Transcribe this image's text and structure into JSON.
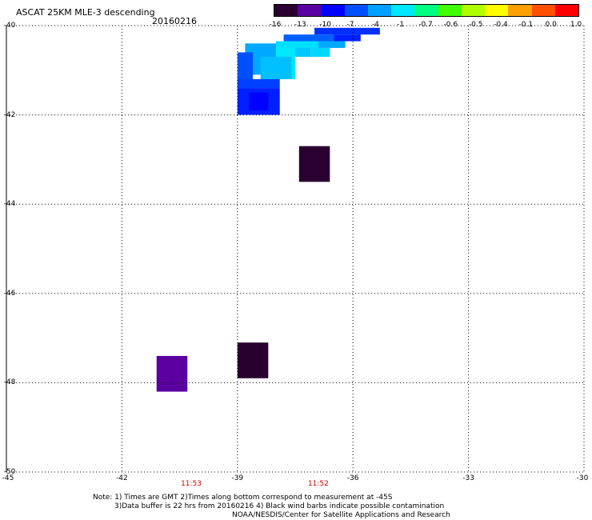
{
  "header": {
    "title": "ASCAT 25KM MLE-3 descending",
    "date": "20160216"
  },
  "colorbar": {
    "labels": [
      "-16",
      "-13",
      "-10",
      "-7",
      "-4",
      "-1",
      "-0.7",
      "-0.6",
      "-0.5",
      "-0.4",
      "-0.1",
      "0.0",
      "1.0"
    ],
    "colors": [
      "#2a0030",
      "#5a00a0",
      "#0000ff",
      "#0050ff",
      "#00a0ff",
      "#00e8ff",
      "#00ff80",
      "#40ff00",
      "#b0ff00",
      "#ffff00",
      "#ffa000",
      "#ff5000",
      "#ff0000"
    ]
  },
  "map": {
    "lat_labels": [
      "-40",
      "-42",
      "-44",
      "-46",
      "-48",
      "-50"
    ],
    "lon_labels": [
      "-45",
      "-42",
      "-39",
      "-36",
      "-33",
      "-30"
    ],
    "time_labels": [
      {
        "text": "11:53",
        "lon": -40.2
      },
      {
        "text": "11:52",
        "lon": -36.9
      }
    ],
    "cells": [
      {
        "lon0": -37.0,
        "lon1": -35.3,
        "lat0": -40.05,
        "lat1": -40.2,
        "color": "#0030ff"
      },
      {
        "lon0": -37.8,
        "lon1": -36.5,
        "lat0": -40.2,
        "lat1": -40.35,
        "color": "#0060ff"
      },
      {
        "lon0": -36.5,
        "lon1": -35.8,
        "lat0": -40.2,
        "lat1": -40.35,
        "color": "#0020ff"
      },
      {
        "lon0": -37.5,
        "lon1": -36.2,
        "lat0": -40.35,
        "lat1": -40.5,
        "color": "#00a8ff"
      },
      {
        "lon0": -38.0,
        "lon1": -36.9,
        "lat0": -40.35,
        "lat1": -40.5,
        "color": "#00e0ff"
      },
      {
        "lon0": -37.1,
        "lon1": -36.6,
        "lat0": -40.5,
        "lat1": -40.7,
        "color": "#00d8ff"
      },
      {
        "lon0": -38.0,
        "lon1": -37.1,
        "lat0": -40.5,
        "lat1": -40.7,
        "color": "#00c8ff"
      },
      {
        "lon0": -38.8,
        "lon1": -38.0,
        "lat0": -40.4,
        "lat1": -41.1,
        "color": "#00a8ff"
      },
      {
        "lon0": -38.0,
        "lon1": -37.5,
        "lat0": -40.5,
        "lat1": -41.2,
        "color": "#00e8ff"
      },
      {
        "lon0": -38.4,
        "lon1": -37.6,
        "lat0": -40.7,
        "lat1": -41.2,
        "color": "#00c0ff"
      },
      {
        "lon0": -39.0,
        "lon1": -38.6,
        "lat0": -40.6,
        "lat1": -41.4,
        "color": "#0050ff"
      },
      {
        "lon0": -39.0,
        "lon1": -37.9,
        "lat0": -41.2,
        "lat1": -41.4,
        "color": "#0040ff"
      },
      {
        "lon0": -39.0,
        "lon1": -37.9,
        "lat0": -41.4,
        "lat1": -42.0,
        "color": "#0020ff"
      },
      {
        "lon0": -38.7,
        "lon1": -38.2,
        "lat0": -41.5,
        "lat1": -41.9,
        "color": "#0000ff"
      },
      {
        "lon0": -37.4,
        "lon1": -36.6,
        "lat0": -42.7,
        "lat1": -43.5,
        "color": "#2a0030"
      },
      {
        "lon0": -39.0,
        "lon1": -38.2,
        "lat0": -47.1,
        "lat1": -47.9,
        "color": "#2a0030"
      },
      {
        "lon0": -41.1,
        "lon1": -40.3,
        "lat0": -47.4,
        "lat1": -48.2,
        "color": "#5a00a0"
      }
    ]
  },
  "notes": [
    "Note: 1) Times are GMT 2)Times along bottom correspond to measurement at -45S",
    "3)Data buffer is 22 hrs from 20160216 4) Black wind barbs indicate possible contamination",
    "NOAA/NESDIS/Center for Satellite Applications and Research"
  ]
}
